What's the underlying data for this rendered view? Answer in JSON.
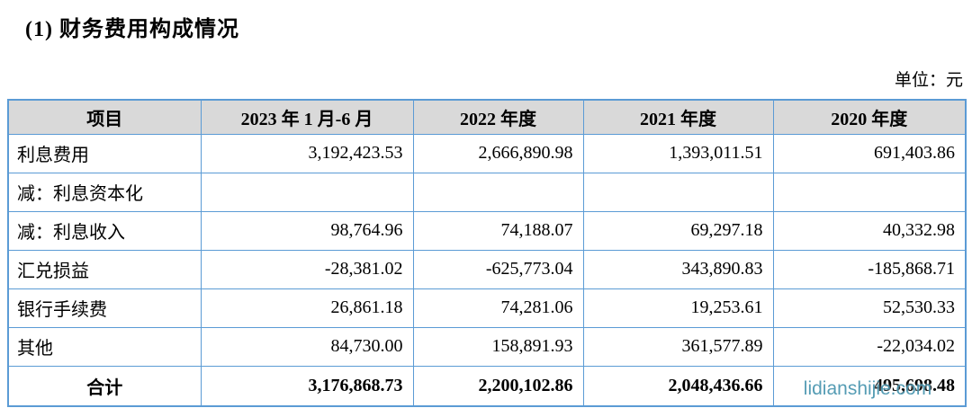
{
  "page": {
    "title": "(1) 财务费用构成情况",
    "unit_label": "单位：元"
  },
  "table": {
    "columns": [
      "项目",
      "2023 年 1 月-6 月",
      "2022 年度",
      "2021 年度",
      "2020 年度"
    ],
    "rows": [
      {
        "label": "利息费用",
        "values": [
          "3,192,423.53",
          "2,666,890.98",
          "1,393,011.51",
          "691,403.86"
        ]
      },
      {
        "label": "减：利息资本化",
        "values": [
          "",
          "",
          "",
          ""
        ]
      },
      {
        "label": "减：利息收入",
        "values": [
          "98,764.96",
          "74,188.07",
          "69,297.18",
          "40,332.98"
        ]
      },
      {
        "label": "汇兑损益",
        "values": [
          "-28,381.02",
          "-625,773.04",
          "343,890.83",
          "-185,868.71"
        ]
      },
      {
        "label": "银行手续费",
        "values": [
          "26,861.18",
          "74,281.06",
          "19,253.61",
          "52,530.33"
        ]
      },
      {
        "label": "其他",
        "values": [
          "84,730.00",
          "158,891.93",
          "361,577.89",
          "-22,034.02"
        ]
      }
    ],
    "total_row": {
      "label": "合计",
      "values": [
        "3,176,868.73",
        "2,200,102.86",
        "2,048,436.66",
        "495,698.48"
      ]
    }
  },
  "watermark": {
    "text": "lidianshijie.com"
  },
  "colors": {
    "table_border": "#5b9bd5",
    "header_background": "#d9d9d9",
    "watermark_color": "#3e8eaa",
    "text": "#000000"
  }
}
